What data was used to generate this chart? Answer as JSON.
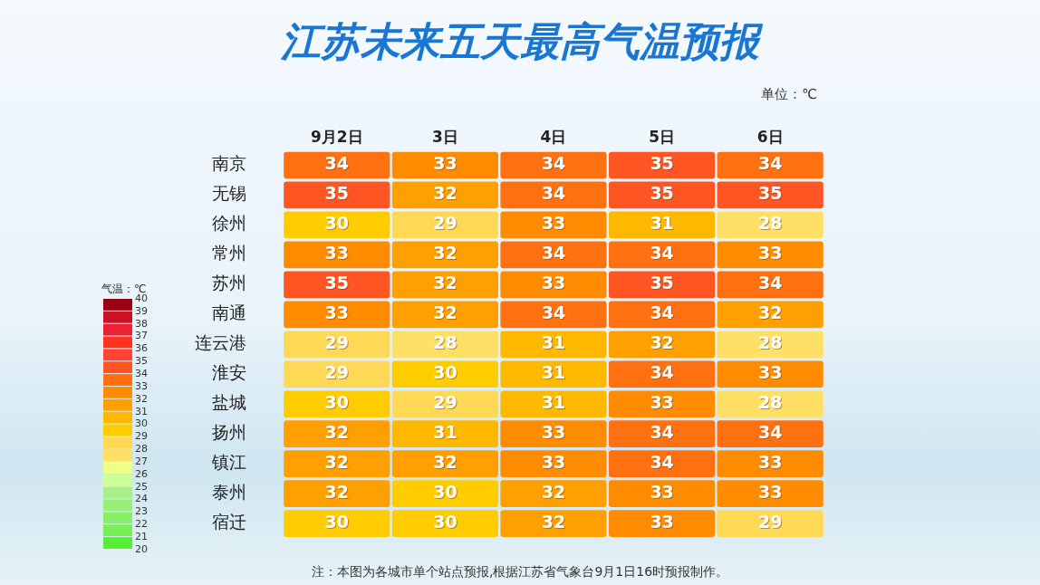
{
  "chart_data": {
    "type": "heatmap",
    "title": "江苏未来五天最高气温预报",
    "categories": [
      "9月2日",
      "3日",
      "4日",
      "5日",
      "6日"
    ],
    "y_categories": [
      "南京",
      "无锡",
      "徐州",
      "常州",
      "苏州",
      "南通",
      "连云港",
      "淮安",
      "盐城",
      "扬州",
      "镇江",
      "泰州",
      "宿迁"
    ],
    "cells": [
      [
        34,
        33,
        34,
        35,
        34
      ],
      [
        35,
        32,
        34,
        35,
        35
      ],
      [
        30,
        29,
        33,
        31,
        28
      ],
      [
        33,
        32,
        34,
        34,
        33
      ],
      [
        35,
        32,
        33,
        35,
        34
      ],
      [
        33,
        32,
        34,
        34,
        32
      ],
      [
        29,
        28,
        31,
        32,
        28
      ],
      [
        29,
        30,
        31,
        34,
        33
      ],
      [
        30,
        29,
        31,
        33,
        28
      ],
      [
        32,
        31,
        33,
        34,
        34
      ],
      [
        32,
        32,
        33,
        34,
        33
      ],
      [
        32,
        30,
        32,
        33,
        33
      ],
      [
        30,
        30,
        32,
        33,
        29
      ]
    ],
    "data_labels": true,
    "clabel": "气温：℃",
    "clim": [
      20,
      40
    ],
    "cticks": [
      20,
      21,
      22,
      23,
      24,
      25,
      26,
      27,
      28,
      29,
      30,
      31,
      32,
      33,
      34,
      35,
      36,
      37,
      38,
      39,
      40
    ],
    "grid": false,
    "legend": false,
    "annotations": [
      "单位：℃",
      "注：本图为各城市单个站点预报,根据江苏省气象台9月1日16时预报制作。"
    ]
  }
}
